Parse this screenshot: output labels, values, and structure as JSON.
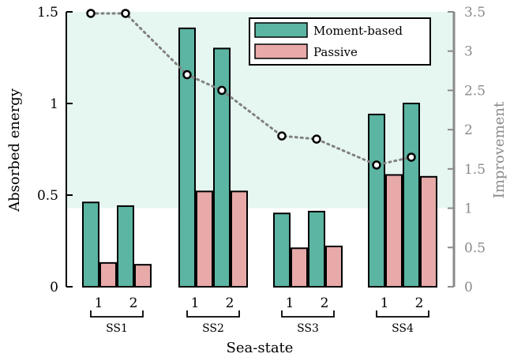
{
  "chart_data": {
    "type": "bar",
    "xlabel": "Sea-state",
    "ylabel": "Absorbed energy",
    "ylabel_right": "Improvement",
    "ylim": [
      0,
      1.5
    ],
    "ylim_right": [
      0,
      3.5
    ],
    "yticks": [
      "0",
      "0.5",
      "1",
      "1.5"
    ],
    "yticks_right": [
      "0",
      "0.5",
      "1",
      "1.5",
      "2",
      "2.5",
      "3",
      "3.5"
    ],
    "groups": [
      "SS1",
      "SS2",
      "SS3",
      "SS4"
    ],
    "sub_labels": [
      "1",
      "2"
    ],
    "series": [
      {
        "name": "Moment-based",
        "color": "#5bb5a2",
        "values": [
          0.46,
          0.44,
          1.41,
          1.3,
          0.4,
          0.41,
          0.94,
          1.0
        ]
      },
      {
        "name": "Passive",
        "color": "#e8a9a9",
        "values": [
          0.13,
          0.12,
          0.52,
          0.52,
          0.21,
          0.22,
          0.61,
          0.6
        ]
      }
    ],
    "improvement": {
      "color": "#808080",
      "values": [
        3.48,
        3.48,
        2.7,
        2.5,
        1.92,
        1.88,
        1.55,
        1.65
      ]
    },
    "shaded_band": {
      "color": "#e6f6f1",
      "y_from": 1.0,
      "y_to": 3.5
    },
    "legend": "top-right",
    "grid": false
  }
}
